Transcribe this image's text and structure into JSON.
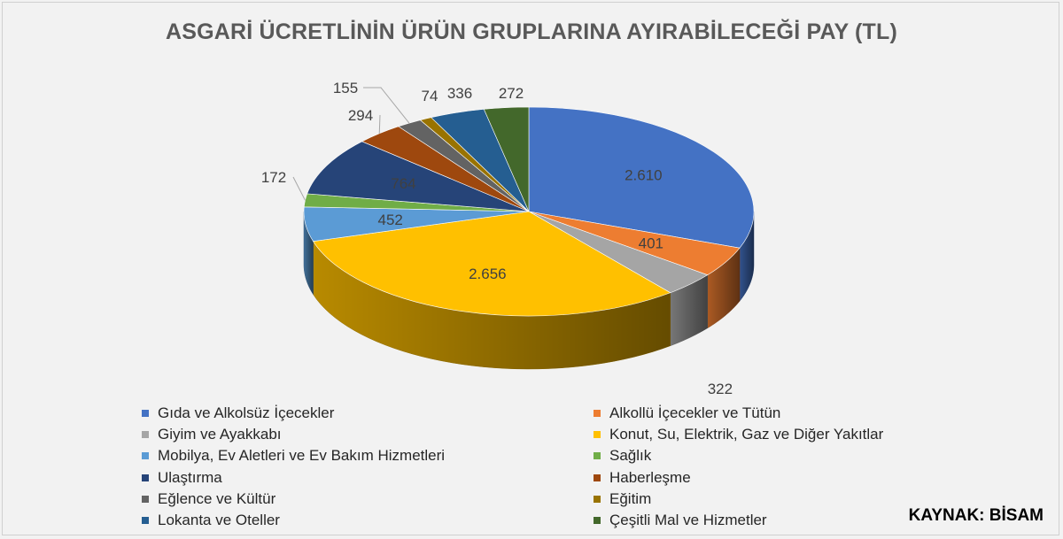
{
  "title": "ASGARİ ÜCRETLİNİN ÜRÜN GRUPLARINA AYIRABİLECEĞİ PAY (TL)",
  "source": "KAYNAK: BİSAM",
  "chart_data": {
    "type": "pie",
    "title": "ASGARİ ÜCRETLİNİN ÜRÜN GRUPLARINA AYIRABİLECEĞİ PAY (TL)",
    "style": "3d",
    "legend_position": "bottom",
    "slices": [
      {
        "name": "Gıda ve Alkolsüz İçecekler",
        "value": 2610,
        "label": "2.610",
        "color": "#4472C4"
      },
      {
        "name": "Alkollü İçecekler ve Tütün",
        "value": 401,
        "label": "401",
        "color": "#ED7D31"
      },
      {
        "name": "Giyim ve Ayakkabı",
        "value": 322,
        "label": "322",
        "color": "#A5A5A5"
      },
      {
        "name": "Konut, Su, Elektrik, Gaz ve Diğer Yakıtlar",
        "value": 2656,
        "label": "2.656",
        "color": "#FFC000"
      },
      {
        "name": "Mobilya, Ev Aletleri ve Ev Bakım Hizmetleri",
        "value": 452,
        "label": "452",
        "color": "#5B9BD5"
      },
      {
        "name": "Sağlık",
        "value": 172,
        "label": "172",
        "color": "#70AD47"
      },
      {
        "name": "Ulaştırma",
        "value": 764,
        "label": "764",
        "color": "#264478"
      },
      {
        "name": "Haberleşme",
        "value": 294,
        "label": "294",
        "color": "#9E480E"
      },
      {
        "name": "Eğlence ve Kültür",
        "value": 155,
        "label": "155",
        "color": "#636363"
      },
      {
        "name": "Eğitim",
        "value": 74,
        "label": "74",
        "color": "#997300"
      },
      {
        "name": "Lokanta ve Oteller",
        "value": 336,
        "label": "336",
        "color": "#255E91"
      },
      {
        "name": "Çeşitli Mal ve Hizmetler",
        "value": 272,
        "label": "272",
        "color": "#43682B"
      }
    ]
  }
}
